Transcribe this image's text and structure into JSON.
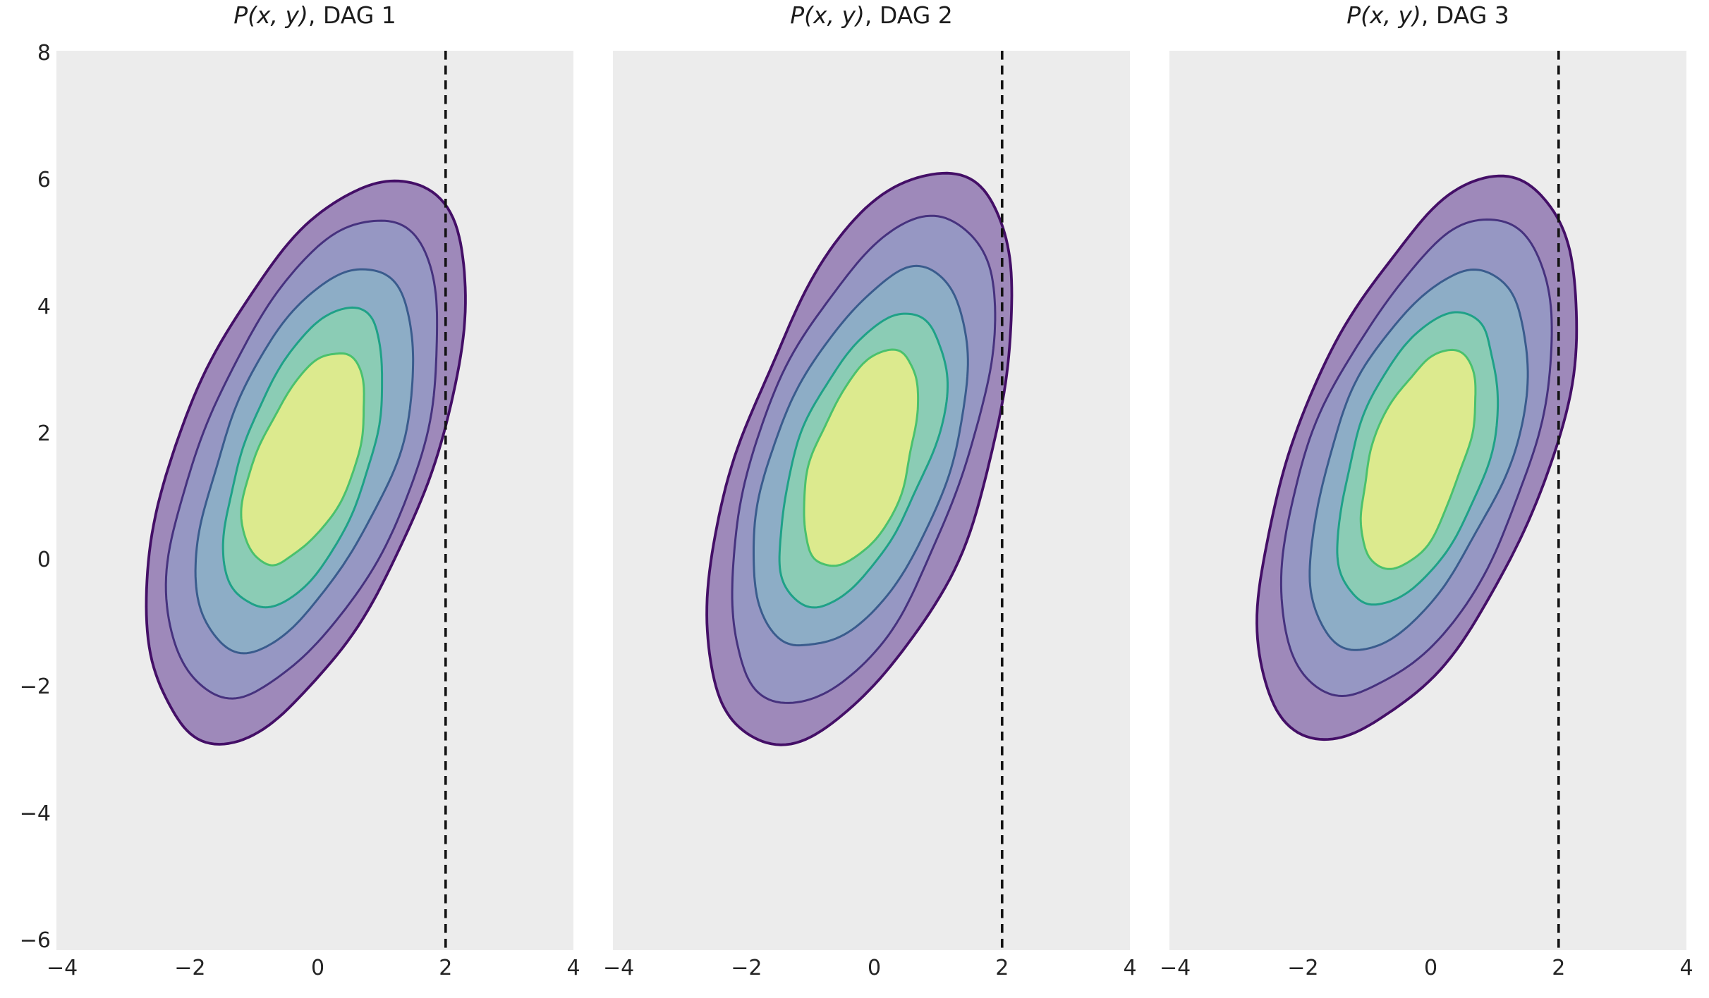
{
  "figure_colors": {
    "background": "#ffffff",
    "axes_background": "#ececec",
    "tick_label_color": "#242424",
    "title_color": "#1c1c1c"
  },
  "chart_data": {
    "type": "contour",
    "description": "Three identical filled KDE density contour plots (viridis palette) of a positively-tilted bivariate Gaussian, one per candidate DAG, each with a black dashed vertical reference line at x = 2",
    "subplots": [
      {
        "title": "P(x, y), DAG 1",
        "title_math": "P(x, y)",
        "title_rest": ", DAG 1",
        "seed": 11
      },
      {
        "title": "P(x, y), DAG 2",
        "title_math": "P(x, y)",
        "title_rest": ", DAG 2",
        "seed": 23
      },
      {
        "title": "P(x, y), DAG 3",
        "title_math": "P(x, y)",
        "title_rest": ", DAG 3",
        "seed": 37
      }
    ],
    "xlim": [
      -4.09,
      4.0
    ],
    "ylim": [
      -6.15,
      8.05
    ],
    "x_ticks": [
      {
        "v": -4,
        "label": "−4"
      },
      {
        "v": -2,
        "label": "−2"
      },
      {
        "v": 0,
        "label": "0"
      },
      {
        "v": 2,
        "label": "2"
      },
      {
        "v": 4,
        "label": "4"
      }
    ],
    "y_ticks": [
      {
        "v": 8,
        "label": "8"
      },
      {
        "v": 6,
        "label": "6"
      },
      {
        "v": 4,
        "label": "4"
      },
      {
        "v": 2,
        "label": "2"
      },
      {
        "v": 0,
        "label": "0"
      },
      {
        "v": -2,
        "label": "−2"
      },
      {
        "v": -4,
        "label": "−4"
      },
      {
        "v": -6,
        "label": "−6"
      }
    ],
    "y_tick_labels_only_on_first_subplot": true,
    "grid": false,
    "vline": {
      "x": 2,
      "color": "#121212",
      "style": "dashed"
    },
    "density": {
      "center": [
        -0.2,
        1.6
      ],
      "angle_deg": 70,
      "semi_axes": [
        4.7,
        1.95
      ],
      "level_scales": [
        1.0,
        0.85,
        0.68,
        0.52,
        0.38
      ],
      "wobble_amp": [
        0.13,
        0.11,
        0.1,
        0.09,
        0.08
      ],
      "fill_colors": [
        "#9e89ba",
        "#9697c3",
        "#8dadc6",
        "#8bccb5",
        "#dcea8e"
      ],
      "line_colors": [
        "#440f67",
        "#46327e",
        "#3a5c8d",
        "#1fa187",
        "#4ac16d"
      ],
      "line_widths": [
        3.8,
        3.0,
        3.0,
        3.0,
        3.0
      ]
    }
  }
}
